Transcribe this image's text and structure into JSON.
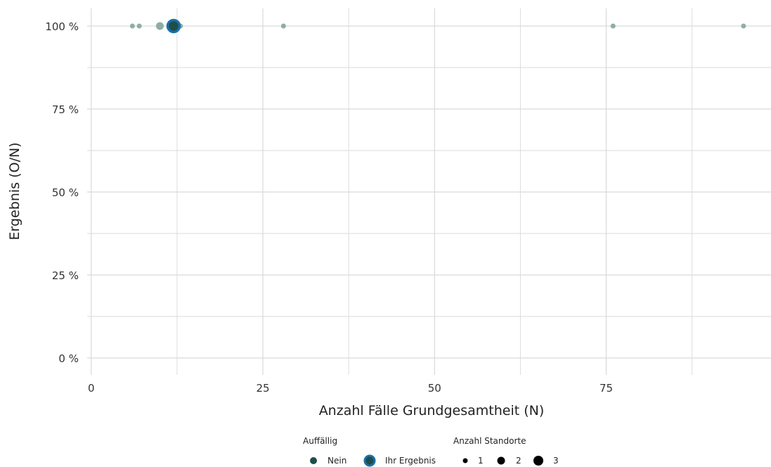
{
  "chart_data": {
    "type": "scatter",
    "xlabel": "Anzahl Fälle Grundgesamtheit (N)",
    "ylabel": "Ergebnis (O/N)",
    "xlim": [
      -1,
      99
    ],
    "ylim": [
      0,
      100
    ],
    "x_ticks": [
      0,
      25,
      50,
      75
    ],
    "x_tick_labels": [
      "0",
      "25",
      "50",
      "75"
    ],
    "y_ticks": [
      0,
      25,
      50,
      75,
      100
    ],
    "y_tick_labels": [
      "0 %",
      "25 %",
      "50 %",
      "75 %",
      "100 %"
    ],
    "grid": true,
    "points": [
      {
        "x": 6,
        "y": 100,
        "count": 1,
        "auffaellig": "Nein"
      },
      {
        "x": 7,
        "y": 100,
        "count": 1,
        "auffaellig": "Nein"
      },
      {
        "x": 10,
        "y": 100,
        "count": 2,
        "auffaellig": "Nein"
      },
      {
        "x": 13,
        "y": 100,
        "count": 1,
        "auffaellig": "Nein"
      },
      {
        "x": 28,
        "y": 100,
        "count": 1,
        "auffaellig": "Nein"
      },
      {
        "x": 76,
        "y": 100,
        "count": 1,
        "auffaellig": "Nein"
      },
      {
        "x": 95,
        "y": 100,
        "count": 1,
        "auffaellig": "Nein"
      }
    ],
    "highlight": {
      "x": 12,
      "y": 100,
      "count": 3,
      "label": "Ihr Ergebnis"
    },
    "legend": {
      "position": "bottom",
      "auffaellig_title": "Auffällig",
      "auffaellig_items": [
        "Nein",
        "Ihr Ergebnis"
      ],
      "size_title": "Anzahl Standorte",
      "size_items": [
        "1",
        "2",
        "3"
      ]
    },
    "colors": {
      "point": "#8fada6",
      "nein": "#1f4e4a",
      "highlight_ring": "#1a6fa8",
      "highlight_fill": "#1f4e4a",
      "grid": "#d9d9d9"
    }
  }
}
